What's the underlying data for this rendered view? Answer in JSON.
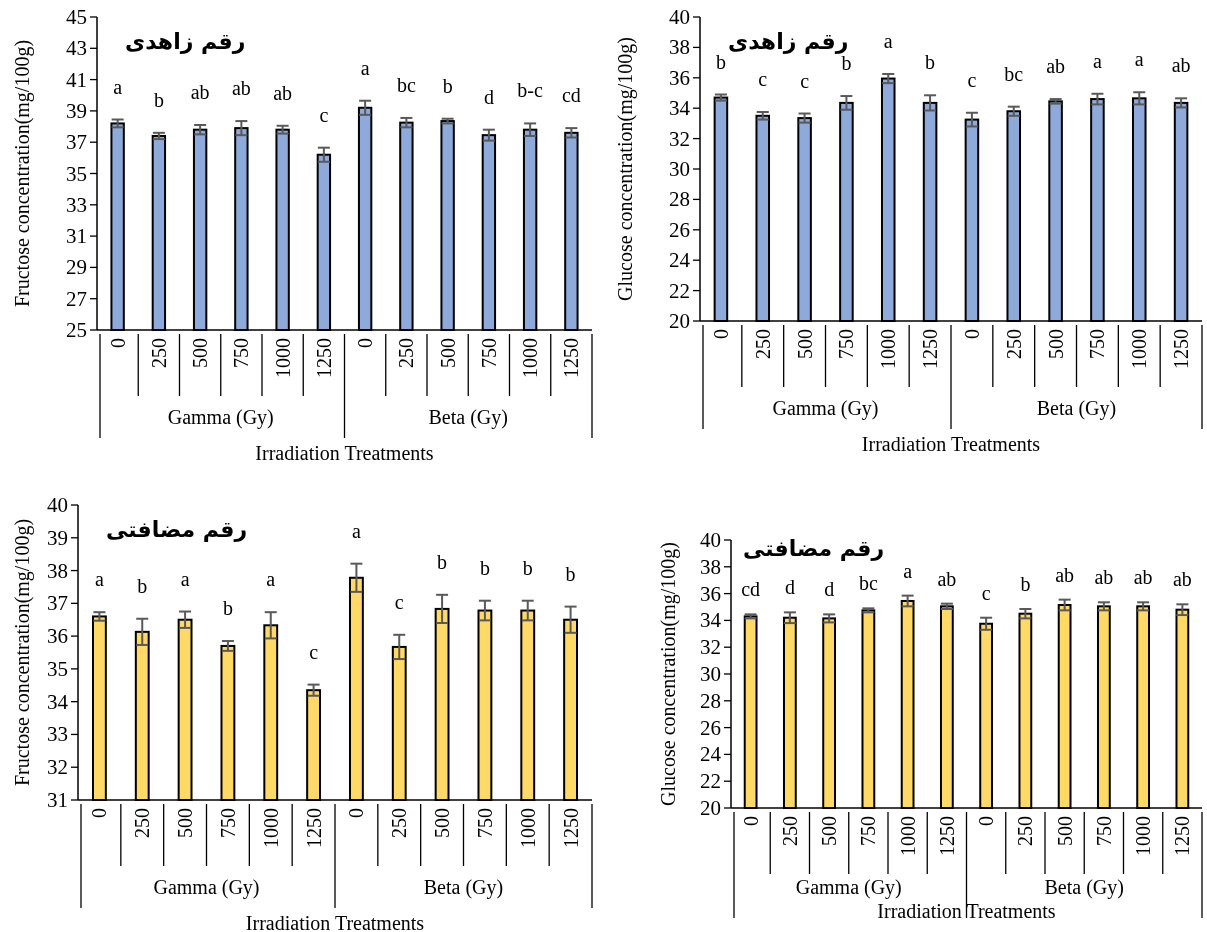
{
  "chart_data": [
    {
      "type": "bar",
      "title": "رقم زاهدی",
      "ylabel": "Fructose concentration(mg/100g)",
      "xlabel": "Irradiation Treatments",
      "categories": [
        "0",
        "250",
        "500",
        "750",
        "1000",
        "1250",
        "0",
        "250",
        "500",
        "750",
        "1000",
        "1250"
      ],
      "values": [
        38.2,
        37.4,
        37.8,
        37.9,
        37.8,
        36.2,
        39.2,
        38.25,
        38.35,
        37.45,
        37.8,
        37.6
      ],
      "errors": [
        0.25,
        0.2,
        0.3,
        0.45,
        0.25,
        0.45,
        0.45,
        0.3,
        0.15,
        0.35,
        0.4,
        0.3
      ],
      "value_labels": [
        "a",
        "b",
        "ab",
        "ab",
        "ab",
        "c",
        "a",
        "bc",
        "b",
        "d",
        "b-c",
        "cd"
      ],
      "color": "#8eaadb",
      "ylim": [
        25,
        45
      ],
      "yticks": [
        25,
        27,
        29,
        31,
        33,
        35,
        37,
        39,
        41,
        43,
        45
      ],
      "annotations": [
        "Gamma (Gy)",
        "Beta (Gy)"
      ]
    },
    {
      "type": "bar",
      "title": "رقم زاهدی",
      "ylabel": "Glucose concentration(mg/100g)",
      "xlabel": "Irradiation Treatments",
      "categories": [
        "0",
        "250",
        "500",
        "750",
        "1000",
        "1250",
        "0",
        "250",
        "500",
        "750",
        "1000",
        "1250"
      ],
      "values": [
        34.7,
        33.5,
        33.35,
        34.35,
        35.95,
        34.35,
        33.25,
        33.8,
        34.45,
        34.6,
        34.65,
        34.35
      ],
      "errors": [
        0.2,
        0.25,
        0.3,
        0.45,
        0.3,
        0.5,
        0.45,
        0.3,
        0.15,
        0.35,
        0.4,
        0.3
      ],
      "value_labels": [
        "b",
        "c",
        "c",
        "b",
        "a",
        "b",
        "c",
        "bc",
        "ab",
        "a",
        "a",
        "ab"
      ],
      "color": "#8eaadb",
      "ylim": [
        20,
        40
      ],
      "yticks": [
        20,
        22,
        24,
        26,
        28,
        30,
        32,
        34,
        36,
        38,
        40
      ],
      "annotations": [
        "Gamma (Gy)",
        "Beta (Gy)"
      ]
    },
    {
      "type": "bar",
      "title": "رقم مضافتی",
      "ylabel": "Fructose concentration(mg/100g)",
      "xlabel": "Irradiation Treatments",
      "categories": [
        "0",
        "250",
        "500",
        "750",
        "1000",
        "1250",
        "0",
        "250",
        "500",
        "750",
        "1000",
        "1250"
      ],
      "values": [
        36.6,
        36.13,
        36.5,
        35.7,
        36.33,
        34.35,
        37.78,
        35.67,
        36.83,
        36.78,
        36.78,
        36.5
      ],
      "errors": [
        0.13,
        0.4,
        0.25,
        0.15,
        0.4,
        0.17,
        0.43,
        0.37,
        0.43,
        0.3,
        0.3,
        0.4
      ],
      "value_labels": [
        "a",
        "b",
        "a",
        "b",
        "a",
        "c",
        "a",
        "c",
        "b",
        "b",
        "b",
        "b"
      ],
      "color": "#ffd966",
      "ylim": [
        31,
        40
      ],
      "yticks": [
        31,
        32,
        33,
        34,
        35,
        36,
        37,
        38,
        39,
        40
      ],
      "annotations": [
        "Gamma (Gy)",
        "Beta (Gy)"
      ]
    },
    {
      "type": "bar",
      "title": "رقم مضافتی",
      "ylabel": "Glucose concentration(mg/100g)",
      "xlabel": "Irradiation Treatments",
      "categories": [
        "0",
        "250",
        "500",
        "750",
        "1000",
        "1250",
        "0",
        "250",
        "500",
        "750",
        "1000",
        "1250"
      ],
      "values": [
        34.3,
        34.2,
        34.15,
        34.75,
        35.45,
        35.05,
        33.75,
        34.5,
        35.15,
        35.05,
        35.05,
        34.8
      ],
      "errors": [
        0.15,
        0.4,
        0.3,
        0.15,
        0.4,
        0.2,
        0.45,
        0.35,
        0.4,
        0.3,
        0.3,
        0.4
      ],
      "value_labels": [
        "cd",
        "d",
        "d",
        "bc",
        "a",
        "ab",
        "c",
        "b",
        "ab",
        "ab",
        "ab",
        "ab"
      ],
      "color": "#ffd966",
      "ylim": [
        20,
        40
      ],
      "yticks": [
        20,
        22,
        24,
        26,
        28,
        30,
        32,
        34,
        36,
        38,
        40
      ],
      "annotations": [
        "Gamma (Gy)",
        "Beta (Gy)"
      ]
    }
  ]
}
